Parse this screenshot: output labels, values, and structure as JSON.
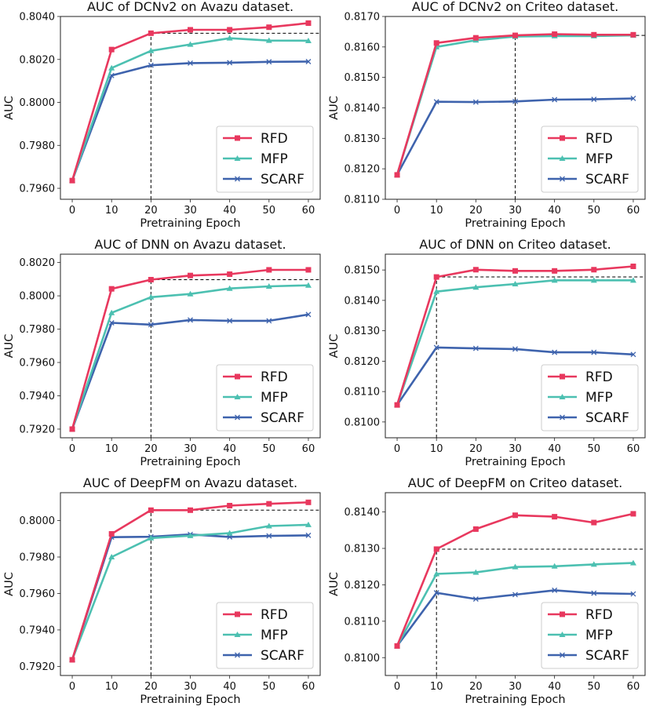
{
  "colors": {
    "RFD": "#e8385e",
    "MFP": "#4cc0b1",
    "SCARF": "#3e63ad"
  },
  "chart_data": [
    {
      "type": "line",
      "title": "AUC of DCNv2 on Avazu dataset.",
      "xlabel": "Pretraining Epoch",
      "ylabel": "AUC",
      "x": [
        0,
        10,
        20,
        30,
        40,
        50,
        60
      ],
      "xticks": [
        "0",
        "10",
        "20",
        "30",
        "40",
        "50",
        "60"
      ],
      "xlim": [
        -3,
        63
      ],
      "ylim": [
        0.79549,
        0.804
      ],
      "yticks": [
        0.796,
        0.798,
        0.8,
        0.802,
        0.804
      ],
      "ytick_labels": [
        "0.7960",
        "0.7980",
        "0.8000",
        "0.8020",
        "0.8040"
      ],
      "legend": "lower-right",
      "reference": {
        "x": 20,
        "y": 0.80322
      },
      "series": [
        {
          "name": "RFD",
          "marker": "square",
          "values": [
            0.79636,
            0.80246,
            0.80322,
            0.80338,
            0.80338,
            0.8035,
            0.80369
          ]
        },
        {
          "name": "MFP",
          "marker": "triangle",
          "values": [
            0.79636,
            0.8016,
            0.8024,
            0.8027,
            0.80299,
            0.80288,
            0.80287
          ]
        },
        {
          "name": "SCARF",
          "marker": "x",
          "values": [
            0.79636,
            0.80125,
            0.80173,
            0.80183,
            0.80185,
            0.80189,
            0.8019
          ]
        }
      ]
    },
    {
      "type": "line",
      "title": "AUC of DCNv2 on Criteo dataset.",
      "xlabel": "Pretraining Epoch",
      "ylabel": "AUC",
      "x": [
        0,
        10,
        20,
        30,
        40,
        50,
        60
      ],
      "xticks": [
        "0",
        "10",
        "20",
        "30",
        "40",
        "50",
        "60"
      ],
      "xlim": [
        -3,
        63
      ],
      "ylim": [
        0.811,
        0.817
      ],
      "yticks": [
        0.811,
        0.812,
        0.813,
        0.814,
        0.815,
        0.816,
        0.817
      ],
      "ytick_labels": [
        "0.8110",
        "0.8120",
        "0.8130",
        "0.8140",
        "0.8150",
        "0.8160",
        "0.8170"
      ],
      "legend": "lower-right",
      "reference": {
        "x": 30,
        "y": 0.81638
      },
      "series": [
        {
          "name": "RFD",
          "marker": "square",
          "values": [
            0.8118,
            0.81613,
            0.8163,
            0.81638,
            0.81642,
            0.8164,
            0.8164
          ]
        },
        {
          "name": "MFP",
          "marker": "triangle",
          "values": [
            0.8118,
            0.816,
            0.81622,
            0.81634,
            0.81636,
            0.81636,
            0.81638
          ]
        },
        {
          "name": "SCARF",
          "marker": "x",
          "values": [
            0.8118,
            0.8142,
            0.81419,
            0.81421,
            0.81427,
            0.81428,
            0.81431
          ]
        }
      ]
    },
    {
      "type": "line",
      "title": "AUC of DNN on Avazu dataset.",
      "xlabel": "Pretraining Epoch",
      "ylabel": "AUC",
      "x": [
        0,
        10,
        20,
        30,
        40,
        50,
        60
      ],
      "xticks": [
        "0",
        "10",
        "20",
        "30",
        "40",
        "50",
        "60"
      ],
      "xlim": [
        -3,
        63
      ],
      "ylim": [
        0.79148,
        0.8025
      ],
      "yticks": [
        0.792,
        0.794,
        0.796,
        0.798,
        0.8,
        0.802
      ],
      "ytick_labels": [
        "0.7920",
        "0.7940",
        "0.7960",
        "0.7980",
        "0.8000",
        "0.8020"
      ],
      "legend": "lower-right",
      "reference": {
        "x": 20,
        "y": 0.80097
      },
      "series": [
        {
          "name": "RFD",
          "marker": "square",
          "values": [
            0.792,
            0.80042,
            0.80097,
            0.80122,
            0.8013,
            0.80156,
            0.80156
          ]
        },
        {
          "name": "MFP",
          "marker": "triangle",
          "values": [
            0.792,
            0.79898,
            0.79992,
            0.80011,
            0.80044,
            0.80057,
            0.80063
          ]
        },
        {
          "name": "SCARF",
          "marker": "x",
          "values": [
            0.792,
            0.79838,
            0.79827,
            0.79855,
            0.7985,
            0.7985,
            0.79888
          ]
        }
      ]
    },
    {
      "type": "line",
      "title": "AUC of DNN on Criteo dataset.",
      "xlabel": "Pretraining Epoch",
      "ylabel": "AUC",
      "x": [
        0,
        10,
        20,
        30,
        40,
        50,
        60
      ],
      "xticks": [
        "0",
        "10",
        "20",
        "30",
        "40",
        "50",
        "60"
      ],
      "xlim": [
        -3,
        63
      ],
      "ylim": [
        0.80948,
        0.81552
      ],
      "yticks": [
        0.81,
        0.811,
        0.812,
        0.813,
        0.814,
        0.815
      ],
      "ytick_labels": [
        "0.8100",
        "0.8110",
        "0.8120",
        "0.8130",
        "0.8140",
        "0.8150"
      ],
      "legend": "lower-right",
      "reference": {
        "x": 10,
        "y": 0.81477
      },
      "series": [
        {
          "name": "RFD",
          "marker": "square",
          "values": [
            0.81056,
            0.81477,
            0.81501,
            0.81497,
            0.81497,
            0.81501,
            0.81512
          ]
        },
        {
          "name": "MFP",
          "marker": "triangle",
          "values": [
            0.81056,
            0.81429,
            0.81443,
            0.81454,
            0.81466,
            0.81466,
            0.81466
          ]
        },
        {
          "name": "SCARF",
          "marker": "x",
          "values": [
            0.81056,
            0.81245,
            0.81242,
            0.8124,
            0.81229,
            0.81229,
            0.81222
          ]
        }
      ]
    },
    {
      "type": "line",
      "title": "AUC of DeepFM on Avazu dataset.",
      "xlabel": "Pretraining Epoch",
      "ylabel": "AUC",
      "x": [
        0,
        10,
        20,
        30,
        40,
        50,
        60
      ],
      "xticks": [
        "0",
        "10",
        "20",
        "30",
        "40",
        "50",
        "60"
      ],
      "xlim": [
        -3,
        63
      ],
      "ylim": [
        0.7915,
        0.80153
      ],
      "yticks": [
        0.792,
        0.794,
        0.796,
        0.798,
        0.8
      ],
      "ytick_labels": [
        "0.7920",
        "0.7940",
        "0.7960",
        "0.7980",
        "0.8000"
      ],
      "legend": "lower-right",
      "reference": {
        "x": 20,
        "y": 0.80057
      },
      "series": [
        {
          "name": "RFD",
          "marker": "square",
          "values": [
            0.79236,
            0.79927,
            0.80057,
            0.80057,
            0.80082,
            0.80092,
            0.801
          ]
        },
        {
          "name": "MFP",
          "marker": "triangle",
          "values": [
            0.79236,
            0.798,
            0.79904,
            0.79917,
            0.79931,
            0.7997,
            0.79977
          ]
        },
        {
          "name": "SCARF",
          "marker": "x",
          "values": [
            0.79236,
            0.79909,
            0.79911,
            0.79924,
            0.7991,
            0.79916,
            0.79919
          ]
        }
      ]
    },
    {
      "type": "line",
      "title": "AUC of DeepFM on Criteo dataset.",
      "xlabel": "Pretraining Epoch",
      "ylabel": "AUC",
      "x": [
        0,
        10,
        20,
        30,
        40,
        50,
        60
      ],
      "xticks": [
        "0",
        "10",
        "20",
        "30",
        "40",
        "50",
        "60"
      ],
      "xlim": [
        -3,
        63
      ],
      "ylim": [
        0.80951,
        0.81453
      ],
      "yticks": [
        0.81,
        0.811,
        0.812,
        0.813,
        0.814
      ],
      "ytick_labels": [
        "0.8100",
        "0.8110",
        "0.8120",
        "0.8130",
        "0.8140"
      ],
      "legend": "lower-right",
      "reference": {
        "x": 10,
        "y": 0.81298
      },
      "series": [
        {
          "name": "RFD",
          "marker": "square",
          "values": [
            0.81032,
            0.81298,
            0.81353,
            0.81391,
            0.81387,
            0.81371,
            0.81395
          ]
        },
        {
          "name": "MFP",
          "marker": "triangle",
          "values": [
            0.81032,
            0.8123,
            0.81234,
            0.81249,
            0.81251,
            0.81256,
            0.8126
          ]
        },
        {
          "name": "SCARF",
          "marker": "x",
          "values": [
            0.81032,
            0.81178,
            0.81161,
            0.81173,
            0.81185,
            0.81177,
            0.81175
          ]
        }
      ]
    }
  ]
}
